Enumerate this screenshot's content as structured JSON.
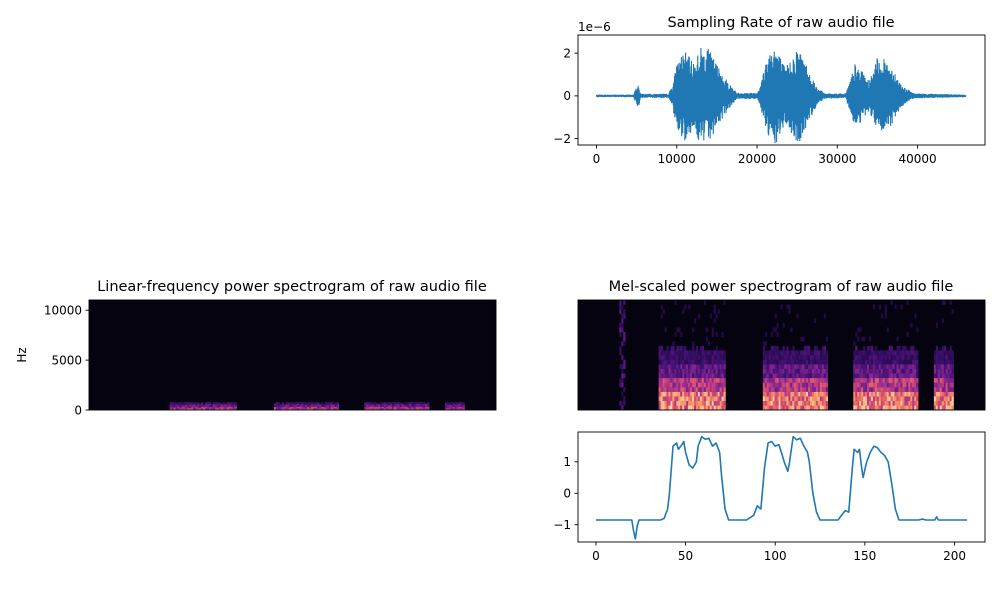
{
  "colors": {
    "line": "#1f77b4",
    "spec_bg": "#04030f"
  },
  "chart_data": [
    {
      "id": "waveform",
      "type": "line",
      "title": "Sampling Rate of raw audio file",
      "xlabel": "",
      "ylabel": "",
      "offset_label": "1e−6",
      "xlim": [
        -2300,
        48400
      ],
      "ylim": [
        -2.3,
        2.85
      ],
      "x_ticks": [
        0,
        10000,
        20000,
        30000,
        40000
      ],
      "x_tick_labels": [
        "0",
        "10000",
        "20000",
        "30000",
        "40000"
      ],
      "y_ticks": [
        -2,
        0,
        2
      ],
      "y_tick_labels": [
        "−2",
        "0",
        "2"
      ],
      "x_end": 46000,
      "envelope": [
        [
          0,
          0.06
        ],
        [
          4600,
          0.06
        ],
        [
          4900,
          0.35
        ],
        [
          5200,
          0.6
        ],
        [
          5500,
          0.1
        ],
        [
          9000,
          0.1
        ],
        [
          9500,
          0.6
        ],
        [
          10200,
          1.8
        ],
        [
          11000,
          2.1
        ],
        [
          12000,
          1.6
        ],
        [
          13000,
          2.3
        ],
        [
          14000,
          2.2
        ],
        [
          15000,
          1.5
        ],
        [
          16500,
          0.6
        ],
        [
          17500,
          0.15
        ],
        [
          20000,
          0.15
        ],
        [
          20600,
          0.8
        ],
        [
          21300,
          2.0
        ],
        [
          22200,
          2.5
        ],
        [
          23500,
          1.3
        ],
        [
          24500,
          2.0
        ],
        [
          25200,
          2.3
        ],
        [
          26500,
          1.2
        ],
        [
          27500,
          0.4
        ],
        [
          28500,
          0.12
        ],
        [
          31000,
          0.12
        ],
        [
          31500,
          0.6
        ],
        [
          32200,
          1.5
        ],
        [
          33000,
          1.2
        ],
        [
          34000,
          0.7
        ],
        [
          35000,
          1.8
        ],
        [
          36000,
          1.7
        ],
        [
          37000,
          1.3
        ],
        [
          38000,
          0.5
        ],
        [
          39500,
          0.12
        ],
        [
          46000,
          0.06
        ]
      ]
    },
    {
      "id": "linear-spectrogram",
      "type": "heatmap",
      "title": "Linear-frequency power spectrogram of raw audio file",
      "xlabel": "",
      "ylabel": "Hz",
      "ylim": [
        0,
        11025
      ],
      "y_ticks": [
        0,
        5000,
        10000
      ],
      "y_tick_labels": [
        "0",
        "5000",
        "10000"
      ],
      "frames": 207,
      "hot_segments": [
        [
          41,
          74
        ],
        [
          94,
          126
        ],
        [
          140,
          172
        ],
        [
          181,
          190
        ]
      ]
    },
    {
      "id": "mel-spectrogram",
      "type": "heatmap",
      "title": "Mel-scaled power spectrogram of raw audio file",
      "xlabel": "",
      "ylabel": "",
      "frames": 207,
      "mel_bins": 24,
      "hot_segments": [
        [
          41,
          74
        ],
        [
          94,
          126
        ],
        [
          140,
          172
        ],
        [
          181,
          190
        ]
      ]
    },
    {
      "id": "mel-feature-line",
      "type": "line",
      "title": "",
      "xlabel": "",
      "ylabel": "",
      "xlim": [
        -10,
        217
      ],
      "ylim": [
        -1.55,
        1.95
      ],
      "x_ticks": [
        0,
        50,
        100,
        150,
        200
      ],
      "x_tick_labels": [
        "0",
        "50",
        "100",
        "150",
        "200"
      ],
      "y_ticks": [
        -1,
        0,
        1
      ],
      "y_tick_labels": [
        "−1",
        "0",
        "1"
      ],
      "points": [
        [
          0,
          -0.85
        ],
        [
          20,
          -0.85
        ],
        [
          21,
          -1.2
        ],
        [
          22,
          -1.45
        ],
        [
          23,
          -1.05
        ],
        [
          24,
          -0.85
        ],
        [
          36,
          -0.85
        ],
        [
          38,
          -0.8
        ],
        [
          40,
          -0.5
        ],
        [
          41,
          0.0
        ],
        [
          43,
          1.5
        ],
        [
          45,
          1.6
        ],
        [
          46,
          1.4
        ],
        [
          48,
          1.55
        ],
        [
          49,
          1.65
        ],
        [
          50,
          1.3
        ],
        [
          52,
          0.9
        ],
        [
          54,
          0.8
        ],
        [
          56,
          1.0
        ],
        [
          57,
          1.5
        ],
        [
          59,
          1.8
        ],
        [
          61,
          1.72
        ],
        [
          63,
          1.75
        ],
        [
          65,
          1.5
        ],
        [
          67,
          1.6
        ],
        [
          69,
          1.3
        ],
        [
          70,
          0.6
        ],
        [
          72,
          -0.5
        ],
        [
          74,
          -0.85
        ],
        [
          84,
          -0.85
        ],
        [
          88,
          -0.7
        ],
        [
          90,
          -0.4
        ],
        [
          92,
          -0.5
        ],
        [
          94,
          0.8
        ],
        [
          96,
          1.6
        ],
        [
          98,
          1.65
        ],
        [
          100,
          1.5
        ],
        [
          102,
          1.55
        ],
        [
          104,
          1.2
        ],
        [
          105,
          1.0
        ],
        [
          107,
          0.7
        ],
        [
          108,
          1.0
        ],
        [
          110,
          1.8
        ],
        [
          112,
          1.7
        ],
        [
          114,
          1.75
        ],
        [
          116,
          1.5
        ],
        [
          118,
          1.3
        ],
        [
          119,
          1.0
        ],
        [
          121,
          0.0
        ],
        [
          123,
          -0.6
        ],
        [
          125,
          -0.85
        ],
        [
          135,
          -0.85
        ],
        [
          137,
          -0.7
        ],
        [
          139,
          -0.55
        ],
        [
          141,
          -0.6
        ],
        [
          143,
          0.8
        ],
        [
          144,
          1.4
        ],
        [
          146,
          1.3
        ],
        [
          147,
          1.4
        ],
        [
          148,
          0.9
        ],
        [
          149,
          0.5
        ],
        [
          151,
          1.0
        ],
        [
          153,
          1.3
        ],
        [
          155,
          1.5
        ],
        [
          157,
          1.45
        ],
        [
          159,
          1.3
        ],
        [
          161,
          1.2
        ],
        [
          163,
          1.0
        ],
        [
          165,
          0.3
        ],
        [
          167,
          -0.5
        ],
        [
          169,
          -0.85
        ],
        [
          180,
          -0.85
        ],
        [
          182,
          -0.82
        ],
        [
          184,
          -0.85
        ],
        [
          189,
          -0.85
        ],
        [
          190,
          -0.75
        ],
        [
          191,
          -0.85
        ],
        [
          202,
          -0.85
        ],
        [
          207,
          -0.85
        ]
      ]
    }
  ]
}
